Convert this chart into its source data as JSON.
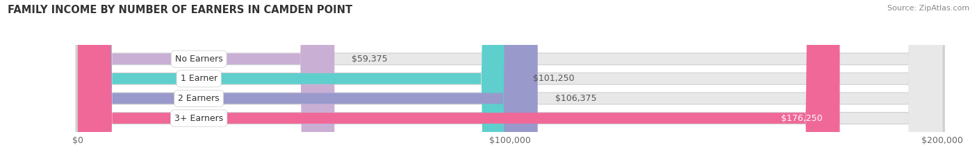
{
  "title": "FAMILY INCOME BY NUMBER OF EARNERS IN CAMDEN POINT",
  "source": "Source: ZipAtlas.com",
  "categories": [
    "No Earners",
    "1 Earner",
    "2 Earners",
    "3+ Earners"
  ],
  "values": [
    59375,
    101250,
    106375,
    176250
  ],
  "bar_colors": [
    "#c9afd4",
    "#5ecfcc",
    "#9999cc",
    "#f06898"
  ],
  "bar_bg_color": "#e8e8e8",
  "value_labels": [
    "$59,375",
    "$101,250",
    "$106,375",
    "$176,250"
  ],
  "xlim_max": 200000,
  "xtick_labels": [
    "$0",
    "$100,000",
    "$200,000"
  ],
  "xtick_vals": [
    0,
    100000,
    200000
  ],
  "title_fontsize": 10.5,
  "source_fontsize": 8,
  "label_fontsize": 9,
  "tick_fontsize": 9,
  "background_color": "#ffffff",
  "plot_bg_color": "#f5f5f5",
  "value_label_color_inside": "#ffffff",
  "value_label_color_outside": "#555555",
  "bar_height": 0.55,
  "bar_spacing": 1.0,
  "shadow_color": "#d0d0d0"
}
